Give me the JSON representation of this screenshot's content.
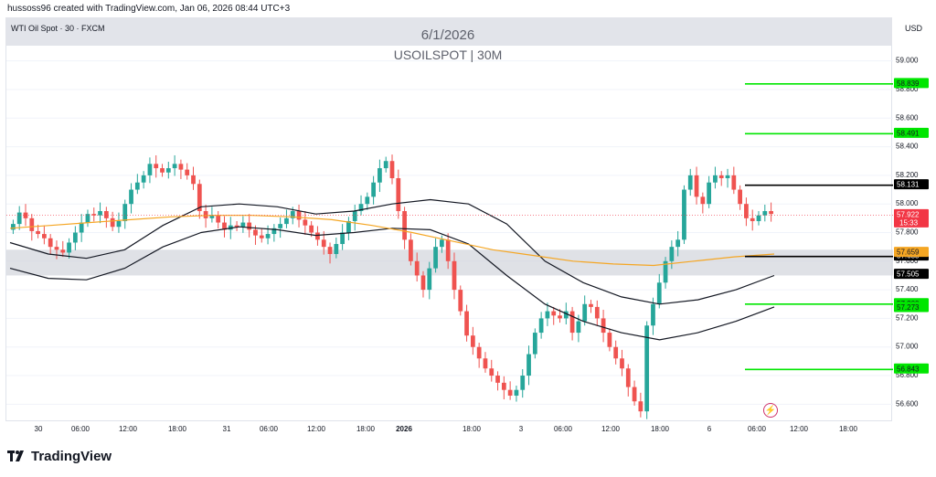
{
  "header": {
    "attribution": "hussoss96 created with TradingView.com, Jan 06, 2026 08:44 UTC+3"
  },
  "symbol_label": "WTI Oil Spot · 30 · FXCM",
  "banner": {
    "date": "6/1/2026",
    "title": "USOILSPOT | 30M"
  },
  "currency": "USD",
  "brand": "TradingView",
  "icons": {
    "brand": "tradingview-logo-icon",
    "bolt": "lightning-icon"
  },
  "colors": {
    "up": "#26a69a",
    "down": "#ef5350",
    "ema": "#f5a623",
    "band": "#131722",
    "zone": "#d1d4dc",
    "level_green": "#00e600",
    "level_black": "#000000",
    "current": "#f23645"
  },
  "chart_data": {
    "type": "candlestick",
    "ylim": [
      56.5,
      59.1
    ],
    "y_ticks": [
      "59.000",
      "58.800",
      "58.600",
      "58.400",
      "58.200",
      "58.000",
      "57.800",
      "57.600",
      "57.400",
      "57.200",
      "57.000",
      "56.800",
      "56.600"
    ],
    "x_ticks": [
      "30",
      "06:00",
      "12:00",
      "18:00",
      "31",
      "06:00",
      "12:00",
      "18:00",
      "2026",
      "18:00",
      "3",
      "06:00",
      "12:00",
      "18:00",
      "6",
      "06:00",
      "12:00",
      "18:00"
    ],
    "candles_close": [
      57.86,
      57.94,
      57.9,
      57.81,
      57.79,
      57.76,
      57.7,
      57.68,
      57.66,
      57.73,
      57.8,
      57.87,
      57.93,
      57.92,
      57.95,
      57.9,
      57.84,
      57.88,
      58.0,
      58.1,
      58.15,
      58.2,
      58.28,
      58.25,
      58.22,
      58.25,
      58.28,
      58.24,
      58.2,
      58.14,
      57.95,
      57.9,
      57.92,
      57.87,
      57.82,
      57.85,
      57.84,
      57.87,
      57.82,
      57.78,
      57.76,
      57.79,
      57.83,
      57.86,
      57.9,
      57.95,
      57.89,
      57.85,
      57.8,
      57.75,
      57.7,
      57.65,
      57.72,
      57.8,
      57.88,
      57.95,
      58.0,
      58.05,
      58.15,
      58.25,
      58.3,
      58.18,
      57.95,
      57.75,
      57.6,
      57.5,
      57.4,
      57.55,
      57.7,
      57.75,
      57.6,
      57.4,
      57.25,
      57.08,
      57.0,
      56.92,
      56.85,
      56.8,
      56.75,
      56.7,
      56.66,
      56.7,
      56.8,
      56.95,
      57.1,
      57.2,
      57.25,
      57.22,
      57.2,
      57.25,
      57.1,
      57.18,
      57.3,
      57.28,
      57.2,
      57.1,
      57.0,
      56.92,
      56.85,
      56.72,
      56.62,
      56.55,
      57.15,
      57.3,
      57.45,
      57.6,
      57.7,
      57.75,
      58.1,
      58.2,
      58.05,
      58.0,
      58.15,
      58.2,
      58.18,
      58.2,
      58.1,
      58.0,
      57.9,
      57.88,
      57.92,
      57.95,
      57.93
    ],
    "ema_values": [
      57.83,
      57.85,
      57.87,
      57.89,
      57.91,
      57.92,
      57.92,
      57.91,
      57.89,
      57.85,
      57.8,
      57.74,
      57.68,
      57.64,
      57.6,
      57.58,
      57.57,
      57.6,
      57.63,
      57.65
    ],
    "upper_band": [
      57.73,
      57.65,
      57.62,
      57.68,
      57.85,
      57.98,
      58.0,
      57.98,
      57.93,
      57.95,
      58.0,
      58.03,
      58.0,
      57.86,
      57.6,
      57.45,
      57.35,
      57.3,
      57.33,
      57.4,
      57.5
    ],
    "lower_band": [
      57.55,
      57.48,
      57.47,
      57.55,
      57.7,
      57.8,
      57.84,
      57.82,
      57.78,
      57.8,
      57.83,
      57.82,
      57.72,
      57.5,
      57.3,
      57.18,
      57.1,
      57.05,
      57.1,
      57.18,
      57.28
    ],
    "zone": [
      57.5,
      57.68
    ],
    "levels": [
      {
        "value": "58.839",
        "kind": "green"
      },
      {
        "value": "58.491",
        "kind": "green"
      },
      {
        "value": "58.131",
        "kind": "black"
      },
      {
        "value": "57.633",
        "kind": "black"
      },
      {
        "value": "57.300",
        "kind": "green"
      },
      {
        "value": "56.843",
        "kind": "green"
      }
    ],
    "axis_labels": [
      {
        "value": "57.922",
        "sub": "15:33",
        "kind": "current"
      },
      {
        "value": "57.659",
        "kind": "ema"
      },
      {
        "value": "57.505",
        "kind": "black"
      },
      {
        "value": "57.273",
        "kind": "green"
      }
    ]
  }
}
